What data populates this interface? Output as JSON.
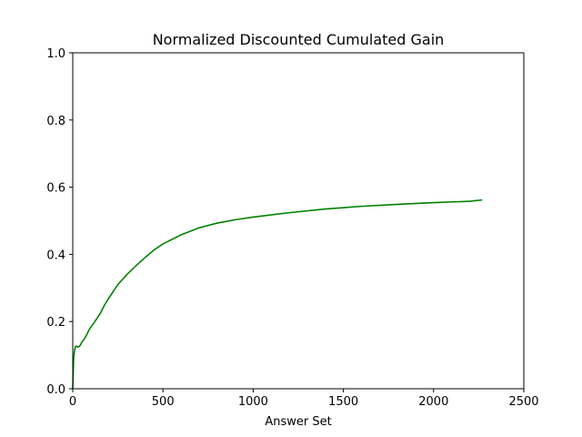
{
  "chart_data": {
    "type": "line",
    "title": "Normalized Discounted Cumulated Gain",
    "xlabel": "Answer Set",
    "ylabel": "",
    "xlim": [
      0,
      2500
    ],
    "ylim": [
      0,
      1.0
    ],
    "xticks": [
      "0",
      "500",
      "1000",
      "1500",
      "2000",
      "2500"
    ],
    "yticks": [
      "0.0",
      "0.2",
      "0.4",
      "0.6",
      "0.8",
      "1.0"
    ],
    "grid": false,
    "legend": "none",
    "series": [
      {
        "color": "#008000",
        "x": [
          0,
          5,
          10,
          15,
          20,
          30,
          40,
          50,
          60,
          75,
          90,
          100,
          120,
          150,
          175,
          200,
          250,
          300,
          350,
          400,
          450,
          500,
          600,
          700,
          800,
          900,
          1000,
          1200,
          1400,
          1600,
          1800,
          2000,
          2200,
          2270
        ],
        "y": [
          0.0,
          0.09,
          0.115,
          0.125,
          0.127,
          0.124,
          0.128,
          0.138,
          0.145,
          0.158,
          0.175,
          0.183,
          0.198,
          0.222,
          0.248,
          0.27,
          0.31,
          0.34,
          0.366,
          0.39,
          0.413,
          0.431,
          0.458,
          0.479,
          0.493,
          0.503,
          0.511,
          0.524,
          0.535,
          0.543,
          0.549,
          0.554,
          0.558,
          0.562
        ]
      }
    ]
  }
}
